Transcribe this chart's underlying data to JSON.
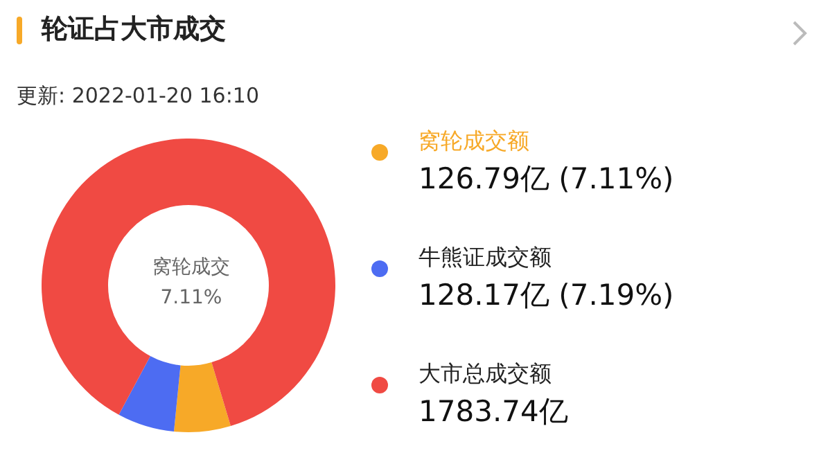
{
  "chart_data": {
    "type": "donut",
    "title": "轮证占大市成交",
    "subtitle": "更新: 2022-01-20 16:10",
    "categories": [
      "窝轮成交额",
      "牛熊证成交额",
      "大市总成交额"
    ],
    "values": [
      126.79,
      128.17,
      1783.74
    ],
    "colors": [
      "#f7a928",
      "#4d6cf2",
      "#f04a43"
    ],
    "value_labels": [
      "126.79亿 (7.11%)",
      "128.17亿 (7.19%)",
      "1783.74亿"
    ],
    "annotations": [
      "窝轮成交",
      "7.11%"
    ],
    "legend": "right"
  }
}
